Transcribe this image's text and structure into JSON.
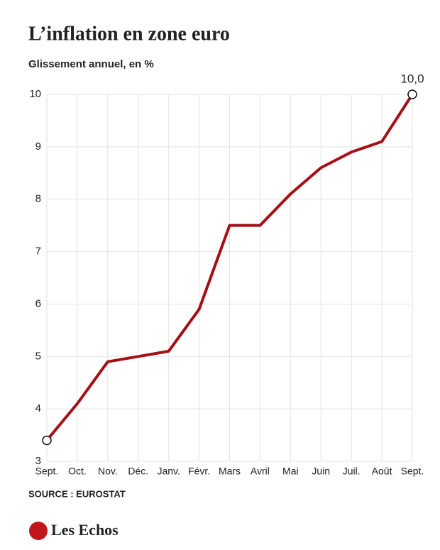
{
  "chart_data": {
    "type": "line",
    "title": "L’inflation en zone euro",
    "subtitle": "Glissement annuel, en %",
    "source": "SOURCE : EUROSTAT",
    "brand": "Les Echos",
    "categories": [
      "Sept.",
      "Oct.",
      "Nov.",
      "Déc.",
      "Janv.",
      "Févr.",
      "Mars",
      "Avril",
      "Mai",
      "Juin",
      "Juil.",
      "Août",
      "Sept."
    ],
    "series": [
      {
        "name": "Inflation",
        "color": "#a50f15",
        "values": [
          3.4,
          4.1,
          4.9,
          5.0,
          5.1,
          5.9,
          7.5,
          7.5,
          8.1,
          8.6,
          8.9,
          9.1,
          10.0
        ],
        "value_labels": [
          null,
          null,
          null,
          null,
          null,
          null,
          null,
          null,
          null,
          null,
          null,
          null,
          "10,0"
        ]
      }
    ],
    "ylim": [
      3,
      10
    ],
    "yticks": [
      3,
      4,
      5,
      6,
      7,
      8,
      9,
      10
    ],
    "grid": true
  }
}
